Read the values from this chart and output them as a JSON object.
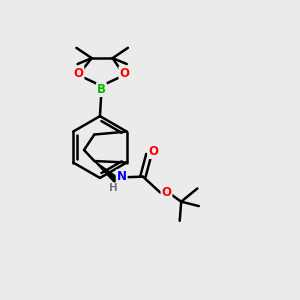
{
  "bg_color": "#ebebeb",
  "atom_colors": {
    "B": "#00bb00",
    "O": "#ff0000",
    "N": "#0000ee",
    "C": "#000000",
    "H": "#777777"
  },
  "bond_color": "#000000",
  "bond_width": 1.8,
  "fig_width": 3.0,
  "fig_height": 3.0,
  "dpi": 100
}
